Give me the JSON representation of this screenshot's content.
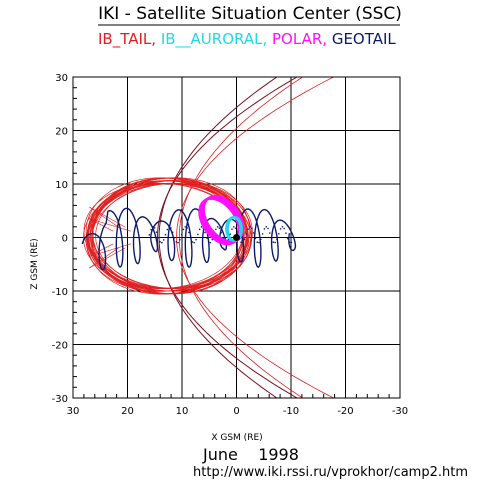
{
  "title": "IKI - Satellite Situation Center (SSC)",
  "satellites": [
    {
      "name": "IB_TAIL",
      "suffix": ",",
      "color": "#e02020"
    },
    {
      "name": "IB__AURORAL",
      "suffix": ",",
      "color": "#20d8e8"
    },
    {
      "name": "POLAR",
      "suffix": ",",
      "color": "#ff10ff"
    },
    {
      "name": "GEOTAIL",
      "suffix": "",
      "color": "#0c1a6e"
    }
  ],
  "date": "June    1998",
  "url": "http://www.iki.rssi.ru/vprokhor/camp2.htm",
  "colors": {
    "magnetopause": "#e02020",
    "bow_shock": "#7a1020",
    "grid": "#000000"
  },
  "chart_data": {
    "type": "line",
    "xlabel": "X GSM (RE)",
    "ylabel": "Z GSM (RE)",
    "xlim": [
      30,
      -30
    ],
    "ylim": [
      -30,
      30
    ],
    "x_ticks": [
      "30",
      "20",
      "10",
      "0",
      "-10",
      "-20",
      "-30"
    ],
    "y_ticks": [
      "30",
      "20",
      "10",
      "0",
      "-10",
      "-20",
      "-30"
    ],
    "grid": true,
    "x_reversed": true,
    "series": [
      {
        "name": "IB_TAIL",
        "color": "#e02020",
        "shape": "orbit envelope",
        "x": [
          27.5,
          25,
          20,
          15,
          10,
          5,
          0,
          -3,
          -4,
          -3,
          0,
          5,
          10,
          15,
          20,
          25,
          27.5
        ],
        "y": [
          -5,
          -9,
          -10.5,
          -11.5,
          -11,
          -9,
          -7,
          -3,
          0,
          3,
          7,
          10,
          11.5,
          11,
          10,
          8,
          3
        ]
      },
      {
        "name": "IB__AURORAL",
        "color": "#20d8e8",
        "shape": "near-Earth orbit",
        "x": [
          0,
          1,
          2,
          2,
          1,
          0,
          -1,
          -1.5,
          -1.5,
          -1
        ],
        "y": [
          3.5,
          3,
          1.5,
          -0.5,
          -1.5,
          -1,
          0.5,
          1.5,
          3,
          3.5
        ]
      },
      {
        "name": "POLAR",
        "color": "#ff10ff",
        "shape": "polar orbit band",
        "x": [
          5.5,
          4.5,
          3.5,
          2.5,
          1.5,
          0.5,
          -0.5,
          -1,
          -0.5,
          0.5,
          1.5,
          2.5,
          3.5,
          4.5,
          5.5,
          6
        ],
        "y": [
          7.5,
          8,
          7,
          5,
          3,
          1,
          -0.5,
          -1.5,
          -1,
          0.5,
          2,
          3.5,
          4.5,
          5.5,
          6.5,
          7.5
        ]
      },
      {
        "name": "GEOTAIL",
        "color": "#0c1a6e",
        "shape": "looping orbit",
        "x": [
          27,
          24,
          20,
          16,
          12,
          8,
          4,
          0,
          -4,
          -8,
          -11
        ],
        "y": [
          -4.5,
          4,
          -5,
          6,
          -6,
          7,
          -5,
          6,
          -2,
          4,
          1
        ]
      }
    ],
    "boundaries": [
      {
        "name": "magnetopause",
        "color": "#e02020"
      },
      {
        "name": "bow shock",
        "color": "#7a1020"
      }
    ]
  }
}
